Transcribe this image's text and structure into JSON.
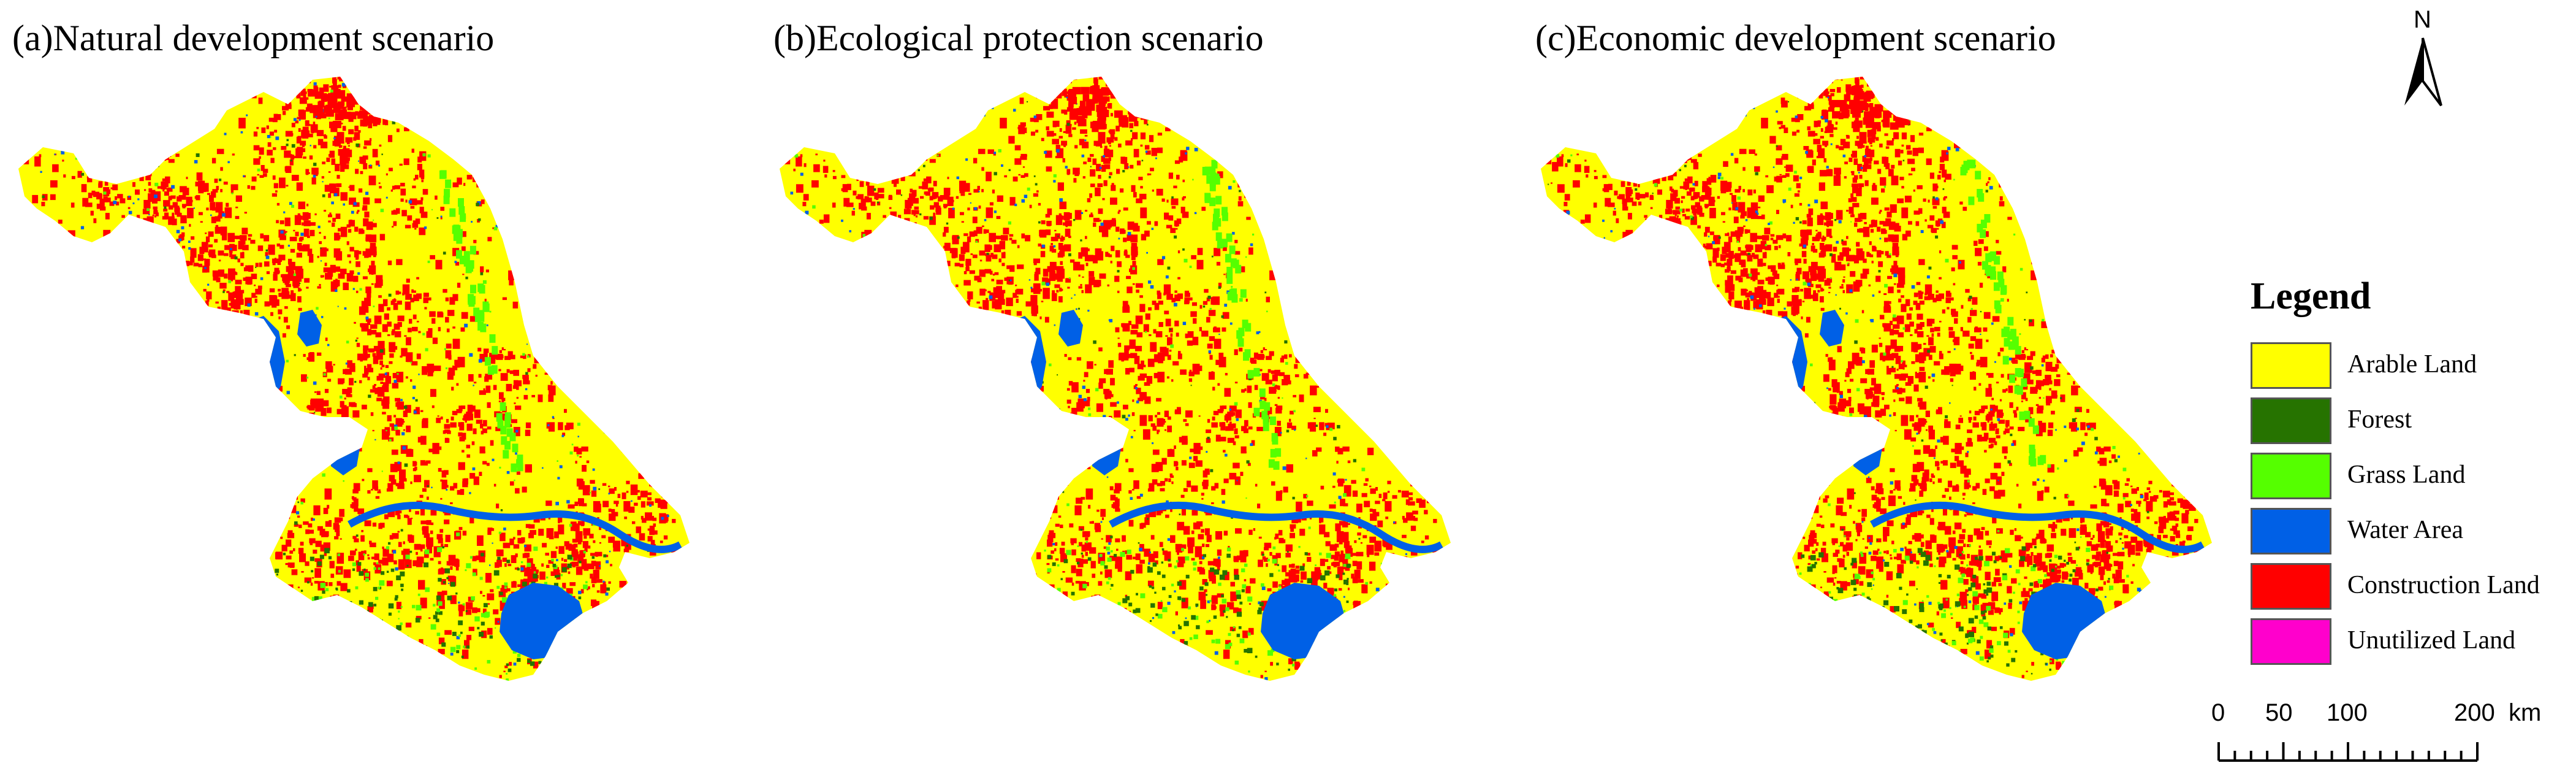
{
  "panels": [
    {
      "title": "(a)Natural development scenario"
    },
    {
      "title": "(b)Ecological protection scenario"
    },
    {
      "title": "(c)Economic development scenario"
    }
  ],
  "north_arrow": {
    "label": "N"
  },
  "legend": {
    "title": "Legend",
    "items": [
      {
        "label": "Arable Land",
        "color": "#ffff00"
      },
      {
        "label": "Forest",
        "color": "#267300"
      },
      {
        "label": "Grass Land",
        "color": "#55ff00"
      },
      {
        "label": "Water Area",
        "color": "#0060e6"
      },
      {
        "label": "Construction Land",
        "color": "#ff0000"
      },
      {
        "label": "Unutilized Land",
        "color": "#ff00cc"
      }
    ]
  },
  "scale_bar": {
    "ticks": [
      "0",
      "50",
      "100",
      "200"
    ],
    "unit": "km"
  }
}
